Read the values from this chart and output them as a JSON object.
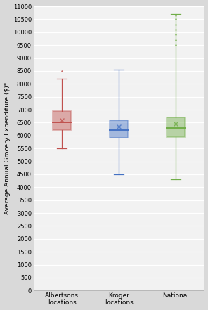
{
  "categories": [
    "Albertsons\nlocations",
    "Kroger\nlocations",
    "National"
  ],
  "boxes": [
    {
      "whisker_low": 5500,
      "q1": 6200,
      "median": 6500,
      "q3": 6950,
      "whisker_high": 8200,
      "mean": 6600,
      "outliers_high": [
        8500
      ],
      "outliers_low": [],
      "color": "#c0504d"
    },
    {
      "whisker_low": 4500,
      "q1": 5900,
      "median": 6200,
      "q3": 6600,
      "whisker_high": 8550,
      "mean": 6350,
      "outliers_high": [],
      "outliers_low": [],
      "color": "#4472c4"
    },
    {
      "whisker_low": 4300,
      "q1": 5950,
      "median": 6300,
      "q3": 6700,
      "whisker_high": 10700,
      "mean": 6450,
      "outliers_high": [
        9500,
        9700,
        9900,
        10100,
        10300,
        10500,
        10650
      ],
      "outliers_low": [],
      "color": "#70ad47"
    }
  ],
  "ylabel": "Average Annual Grocery Expenditure ($)*",
  "ylim": [
    0,
    11000
  ],
  "yticks": [
    0,
    500,
    1000,
    1500,
    2000,
    2500,
    3000,
    3500,
    4000,
    4500,
    5000,
    5500,
    6000,
    6500,
    7000,
    7500,
    8000,
    8500,
    9000,
    9500,
    10000,
    10500,
    11000
  ],
  "outer_bg": "#d9d9d9",
  "plot_bg": "#f2f2f2",
  "grid_color": "#ffffff",
  "box_width": 0.32,
  "cap_ratio": 0.55
}
